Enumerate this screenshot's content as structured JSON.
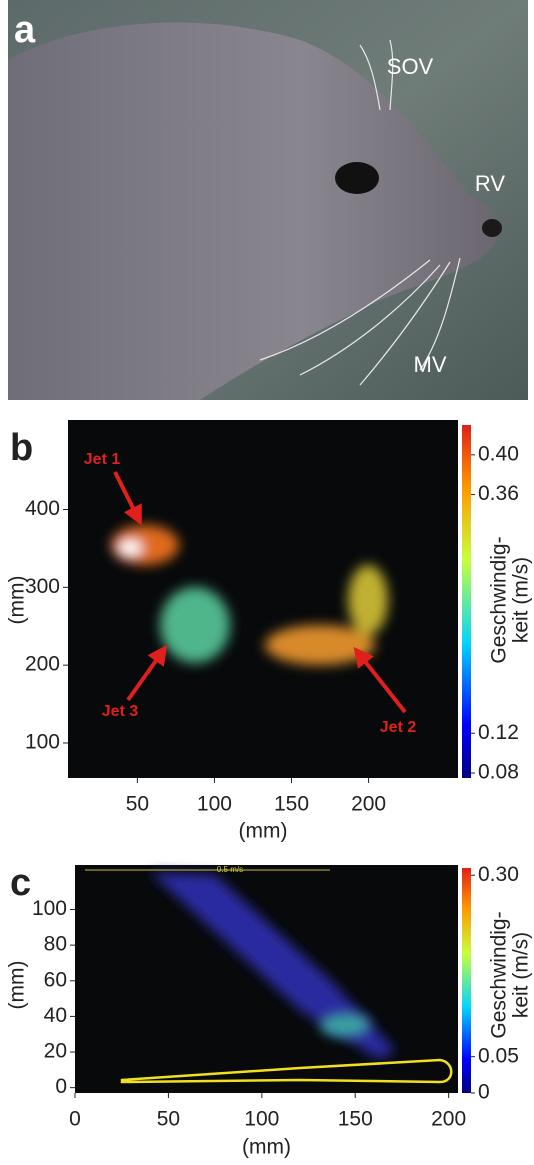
{
  "panels": {
    "a": {
      "label": "a",
      "annotations": [
        "SOV",
        "RV",
        "MV"
      ]
    },
    "b": {
      "label": "b",
      "type": "vector-field",
      "xlabel": "(mm)",
      "ylabel": "(mm)",
      "xlim": [
        5,
        258
      ],
      "xticks": [
        50,
        100,
        150,
        200
      ],
      "ylim": [
        55,
        515
      ],
      "yticks": [
        100,
        200,
        300,
        400
      ],
      "colorbar": {
        "label": [
          "Geschwindig-",
          "keit (m/s)"
        ],
        "lim": [
          0.075,
          0.43
        ],
        "ticks": [
          0.08,
          0.12,
          0.36,
          {
            "value": 0.4,
            "label": "0.40"
          }
        ]
      },
      "jets": [
        "Jet 1",
        "Jet 2",
        "Jet 3"
      ]
    },
    "c": {
      "label": "c",
      "type": "vector-field",
      "xlabel": "(mm)",
      "ylabel": "(mm)",
      "xlim": [
        0,
        205
      ],
      "xticks": [
        0,
        50,
        100,
        150,
        200
      ],
      "ylim": [
        -3,
        125
      ],
      "yticks": [
        0,
        20,
        40,
        60,
        80,
        100
      ],
      "scale_label": "0.5 m/s",
      "colorbar": {
        "label": [
          "Geschwindig-",
          "keit (m/s)"
        ],
        "lim": [
          0,
          0.31
        ],
        "ticks": [
          0,
          0.05,
          {
            "value": 0.3,
            "label": "0.30"
          }
        ]
      }
    }
  }
}
